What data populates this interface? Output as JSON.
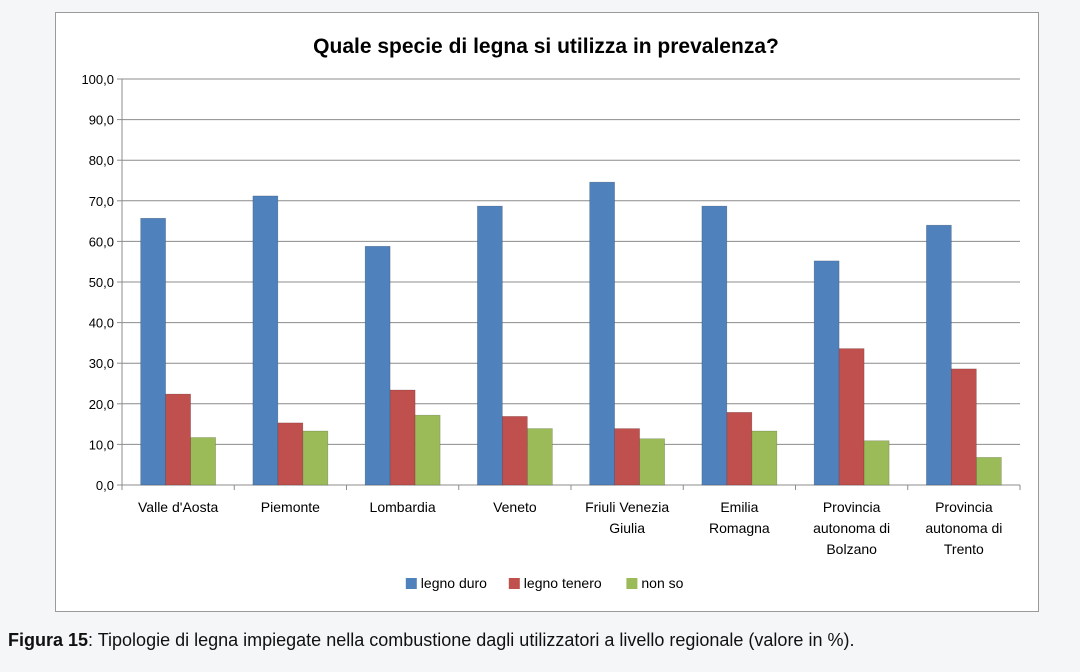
{
  "chart_data": {
    "type": "bar",
    "title": "Quale specie di legna si utilizza in prevalenza?",
    "xlabel": "",
    "ylabel": "",
    "ylim": [
      0,
      100
    ],
    "yticks": [
      "0,0",
      "10,0",
      "20,0",
      "30,0",
      "40,0",
      "50,0",
      "60,0",
      "70,0",
      "80,0",
      "90,0",
      "100,0"
    ],
    "grid": true,
    "legend_position": "bottom",
    "categories": [
      [
        "Valle d'Aosta"
      ],
      [
        "Piemonte"
      ],
      [
        "Lombardia"
      ],
      [
        "Veneto"
      ],
      [
        "Friuli Venezia",
        "Giulia"
      ],
      [
        "Emilia",
        "Romagna"
      ],
      [
        "Provincia",
        "autonoma di",
        "Bolzano"
      ],
      [
        "Provincia",
        "autonoma di",
        "Trento"
      ]
    ],
    "series": [
      {
        "name": "legno duro",
        "color": "#4f81bd",
        "values": [
          65.7,
          71.2,
          58.8,
          68.7,
          74.6,
          68.7,
          55.2,
          64.0
        ]
      },
      {
        "name": "legno tenero",
        "color": "#c0504d",
        "values": [
          22.4,
          15.3,
          23.4,
          16.9,
          13.9,
          17.9,
          33.6,
          28.6
        ]
      },
      {
        "name": "non so",
        "color": "#9bbb59",
        "values": [
          11.7,
          13.3,
          17.2,
          13.9,
          11.4,
          13.3,
          10.9,
          6.8
        ]
      }
    ]
  },
  "caption": {
    "figure_label": "Figura 15",
    "text": ": Tipologie di legna impiegate nella combustione dagli utilizzatori a livello regionale (valore in %)."
  }
}
